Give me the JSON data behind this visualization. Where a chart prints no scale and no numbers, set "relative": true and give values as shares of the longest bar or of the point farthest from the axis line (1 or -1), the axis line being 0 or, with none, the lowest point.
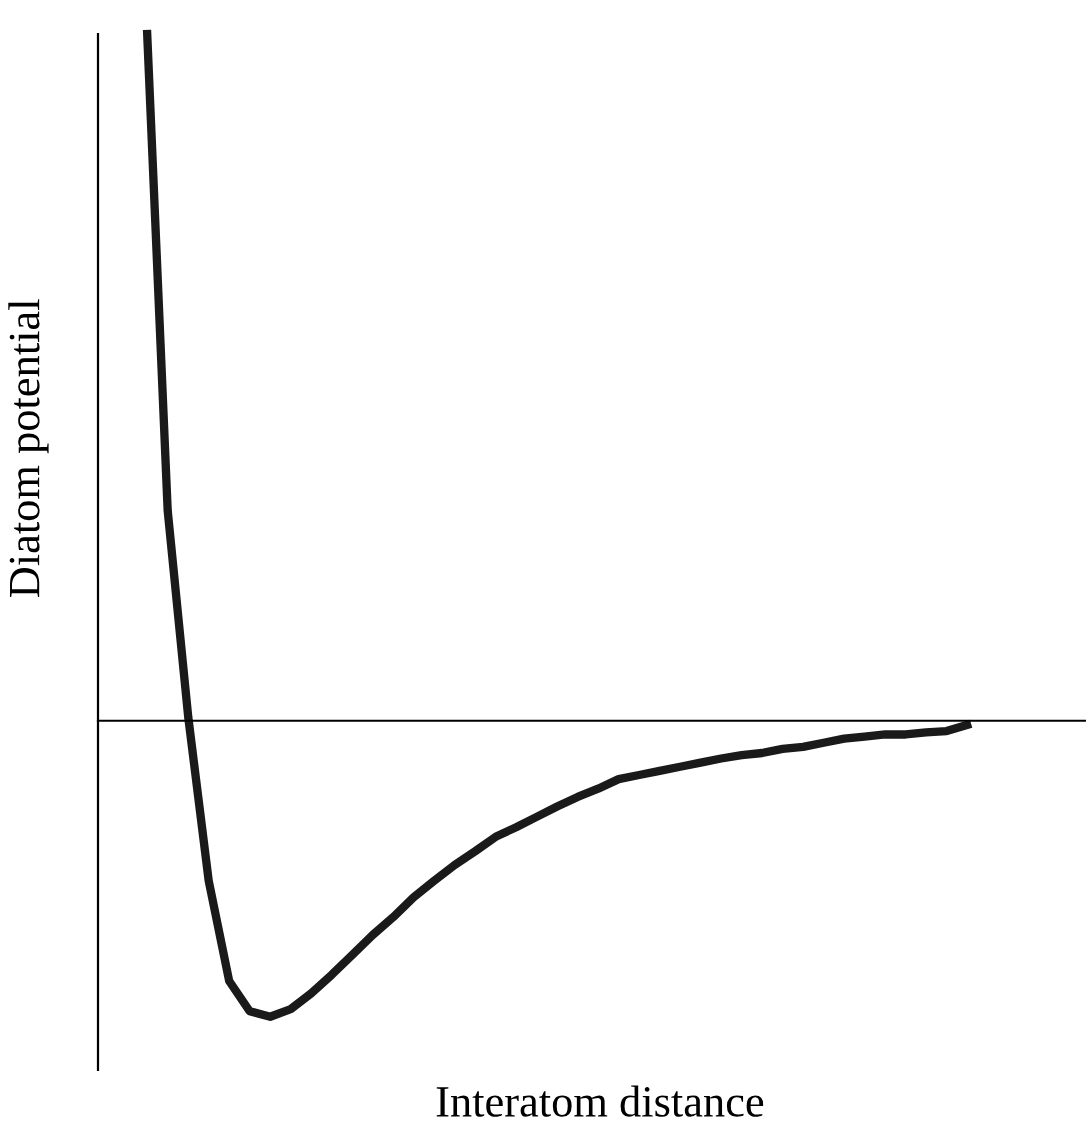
{
  "chart_data": {
    "type": "line",
    "relative": true,
    "xlabel": "Interatom distance",
    "ylabel": "Diatom potential",
    "categories": [
      null,
      null,
      null,
      null,
      null,
      null,
      null,
      null,
      null,
      null,
      null,
      null,
      null,
      null,
      null,
      null,
      null,
      null,
      null,
      null,
      null,
      null,
      null,
      null,
      null,
      null,
      null,
      null,
      null,
      null,
      null,
      null,
      null,
      null,
      null,
      null,
      null,
      null,
      null,
      null,
      null
    ],
    "series": [
      {
        "color": "#1a1a1a",
        "values": [
          1.0,
          0.306,
          0.006,
          -0.233,
          -0.379,
          -0.423,
          -0.431,
          -0.42,
          -0.397,
          -0.37,
          -0.341,
          -0.312,
          -0.286,
          -0.257,
          -0.233,
          -0.21,
          -0.19,
          -0.169,
          -0.155,
          -0.14,
          -0.125,
          -0.111,
          -0.099,
          -0.085,
          -0.079,
          -0.073,
          -0.067,
          -0.061,
          -0.055,
          -0.05,
          -0.047,
          -0.041,
          -0.038,
          -0.032,
          -0.026,
          -0.023,
          -0.02,
          -0.02,
          -0.017,
          -0.015,
          -0.006
        ]
      }
    ],
    "legend": false,
    "marker": "none",
    "line_style": "solid"
  }
}
